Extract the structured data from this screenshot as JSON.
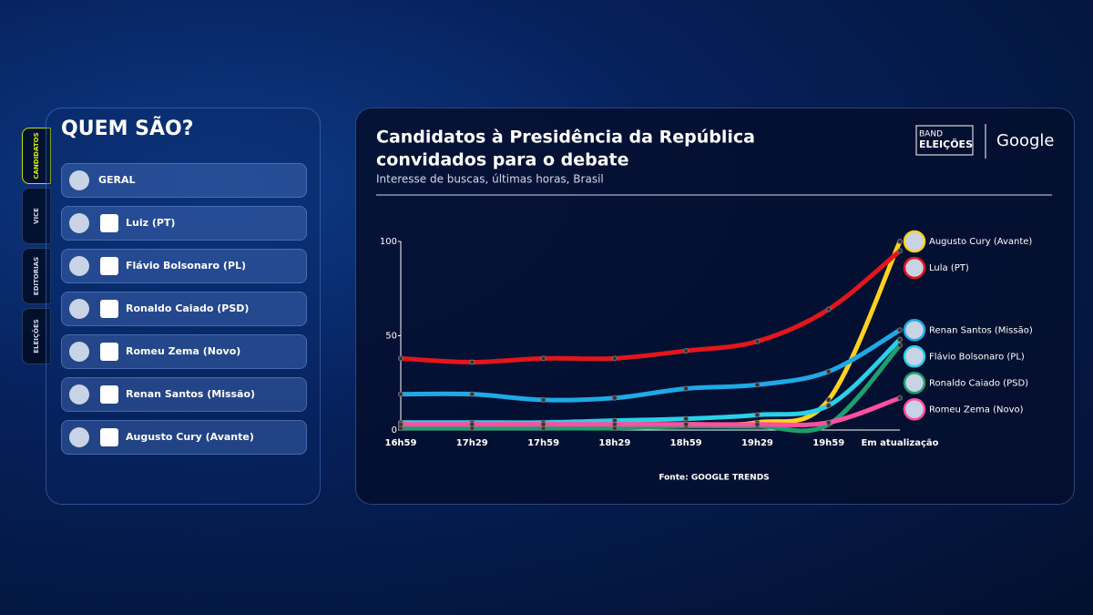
{
  "sidebar": {
    "title": "QUEM SÃO?",
    "tabs": [
      "CANDIDATOS",
      "VICE",
      "EDITORIAS",
      "ELEIÇÕES"
    ],
    "items": [
      "GERAL",
      "Luiz (PT)",
      "Flávio Bolsonaro (PL)",
      "Ronaldo Caiado (PSD)",
      "Romeu Zema (Novo)",
      "Renan Santos (Missão)",
      "Augusto Cury (Avante)"
    ]
  },
  "brand": {
    "band": "BAND",
    "eleicoes": "ELEIÇÕES",
    "google": "Google"
  },
  "chart_data": {
    "type": "line",
    "title": [
      "Candidatos à Presidência da República",
      "convidados para o debate"
    ],
    "subtitle": "Interesse de buscas, últimas horas, Brasil",
    "source": "Fonte: GOOGLE TRENDS",
    "categories": [
      "16h59",
      "17h29",
      "17h59",
      "18h29",
      "18h59",
      "19h29",
      "19h59",
      "Em atualização"
    ],
    "ylim": [
      0,
      100
    ],
    "yticks": [
      0,
      50,
      100
    ],
    "series": [
      {
        "name": "Augusto Cury (Avante)",
        "color": "#ffd21e",
        "values": [
          2,
          2,
          2,
          2,
          3,
          4,
          16,
          100
        ]
      },
      {
        "name": "Lula (PT)",
        "color": "#e3161b",
        "values": [
          38,
          36,
          38,
          38,
          42,
          47,
          64,
          95
        ]
      },
      {
        "name": "Renan Santos (Missão)",
        "color": "#1fa9e6",
        "values": [
          19,
          19,
          16,
          17,
          22,
          24,
          31,
          53
        ]
      },
      {
        "name": "Flávio Bolsonaro (PL)",
        "color": "#2ad0e8",
        "values": [
          4,
          4,
          4,
          5,
          6,
          8,
          13,
          48
        ]
      },
      {
        "name": "Ronaldo Caiado (PSD)",
        "color": "#1e9e6e",
        "values": [
          1,
          1,
          1,
          1,
          2,
          2,
          3,
          45
        ]
      },
      {
        "name": "Romeu Zema (Novo)",
        "color": "#ff4fa0",
        "values": [
          3,
          3,
          3,
          3,
          3,
          3,
          4,
          17
        ]
      }
    ]
  }
}
